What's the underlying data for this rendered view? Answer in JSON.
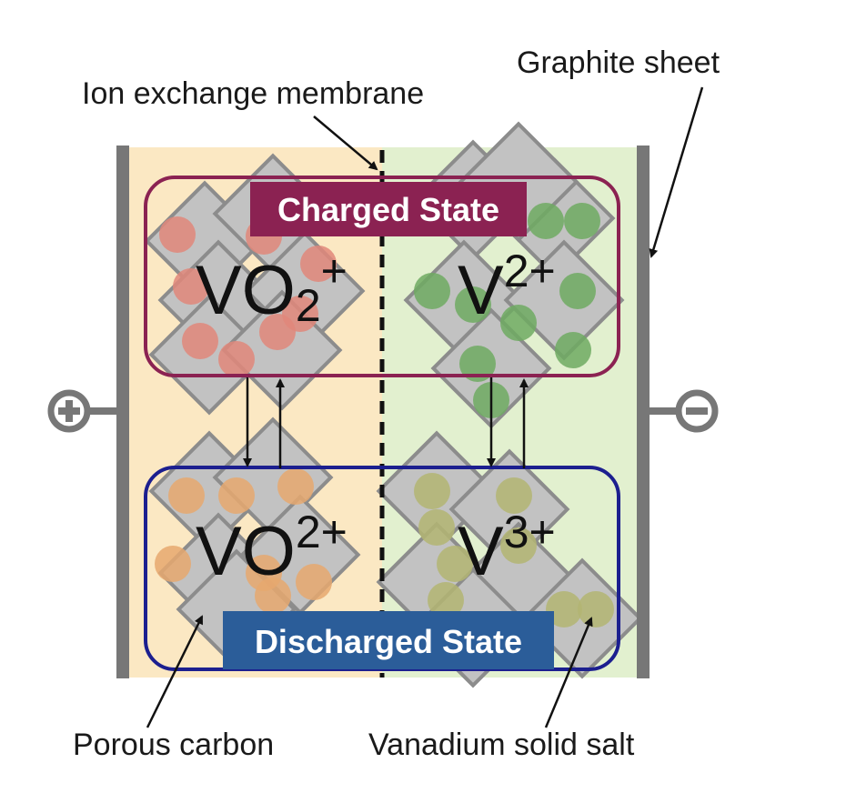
{
  "labels": {
    "membrane": "Ion exchange membrane",
    "graphite": "Graphite sheet",
    "porous": "Porous carbon",
    "salt": "Vanadium solid salt"
  },
  "states": {
    "charged": "Charged State",
    "discharged": "Discharged State"
  },
  "ions": {
    "charged_positive": {
      "base": "VO",
      "sub": "2",
      "sup": "+"
    },
    "charged_negative": {
      "base": "V",
      "sup": "2+"
    },
    "discharged_positive": {
      "base": "VO",
      "sup": "2+"
    },
    "discharged_negative": {
      "base": "V",
      "sup": "3+"
    }
  },
  "electrodes": {
    "positive": "plus-icon",
    "negative": "minus-icon"
  },
  "colors": {
    "positive_side": "#fbe8c3",
    "negative_side": "#e2f0cf",
    "graphite": "#777777",
    "charged": "#8b2252",
    "discharged": "#2b5d99",
    "discharged_border": "#1c1f8f",
    "vo2_plus": "#e0877a",
    "v2_plus": "#6faa62",
    "vo_2plus": "#e6a86e",
    "v3_plus": "#b3b572",
    "carbon": "#c2c2c2"
  }
}
